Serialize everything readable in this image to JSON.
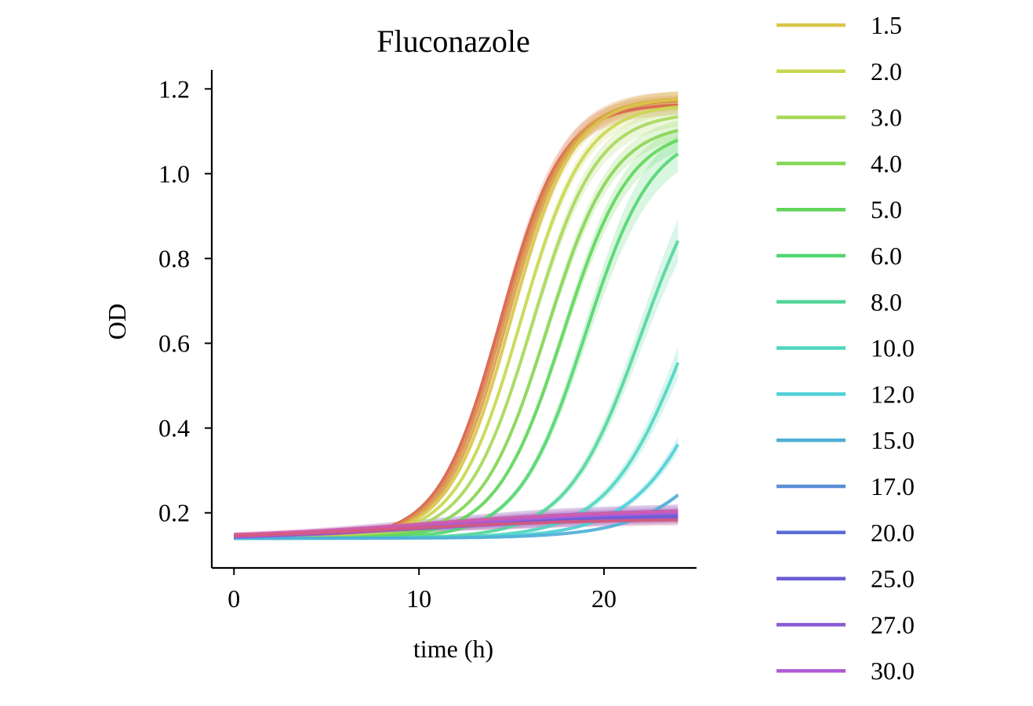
{
  "chart_data": {
    "type": "line",
    "title": "Fluconazole",
    "xlabel": "time (h)",
    "ylabel": "OD",
    "xlim": [
      -1.2,
      25
    ],
    "ylim": [
      0.07,
      1.245
    ],
    "xticks": [
      0,
      10,
      20
    ],
    "yticks": [
      0.2,
      0.4,
      0.6,
      0.8,
      1.0,
      1.2
    ],
    "xtick_labels": [
      "0",
      "10",
      "20"
    ],
    "ytick_labels": [
      "0.2",
      "0.4",
      "0.6",
      "0.8",
      "1.0",
      "1.2"
    ],
    "grid": false,
    "legend_position": "outside-right",
    "legend_entries": [
      {
        "label": "1.5",
        "color": "#d9c54a"
      },
      {
        "label": "2.0",
        "color": "#c8d84f"
      },
      {
        "label": "3.0",
        "color": "#a8d85a"
      },
      {
        "label": "4.0",
        "color": "#86d654"
      },
      {
        "label": "5.0",
        "color": "#5fd65a"
      },
      {
        "label": "6.0",
        "color": "#52d670"
      },
      {
        "label": "8.0",
        "color": "#52d69a"
      },
      {
        "label": "10.0",
        "color": "#4fd6bf"
      },
      {
        "label": "12.0",
        "color": "#4fcfd6"
      },
      {
        "label": "15.0",
        "color": "#4fafd6"
      },
      {
        "label": "17.0",
        "color": "#5a8fd6"
      },
      {
        "label": "20.0",
        "color": "#5a6cd6"
      },
      {
        "label": "25.0",
        "color": "#6a5ad6"
      },
      {
        "label": "27.0",
        "color": "#8a5ad6"
      },
      {
        "label": "30.0",
        "color": "#b05ad6"
      }
    ],
    "series": [
      {
        "color": "#d9604a",
        "baseline": 0.14,
        "plateau": 1.165,
        "midpoint": 14.4,
        "rate": 0.6,
        "band": 0.02
      },
      {
        "color": "#d9884a",
        "baseline": 0.14,
        "plateau": 1.175,
        "midpoint": 14.6,
        "rate": 0.6,
        "band": 0.02
      },
      {
        "color": "#d9a24a",
        "baseline": 0.14,
        "plateau": 1.18,
        "midpoint": 14.8,
        "rate": 0.6,
        "band": 0.015
      },
      {
        "color": "#d9c54a",
        "baseline": 0.14,
        "plateau": 1.18,
        "midpoint": 15.0,
        "rate": 0.6,
        "band": 0.015
      },
      {
        "color": "#c8d84f",
        "baseline": 0.14,
        "plateau": 1.165,
        "midpoint": 15.5,
        "rate": 0.58,
        "band": 0.015
      },
      {
        "color": "#a8d85a",
        "baseline": 0.14,
        "plateau": 1.145,
        "midpoint": 16.1,
        "rate": 0.57,
        "band": 0.02
      },
      {
        "color": "#86d654",
        "baseline": 0.14,
        "plateau": 1.12,
        "midpoint": 16.9,
        "rate": 0.56,
        "band": 0.02
      },
      {
        "color": "#5fd65a",
        "baseline": 0.14,
        "plateau": 1.11,
        "midpoint": 17.8,
        "rate": 0.55,
        "band": 0.025
      },
      {
        "color": "#52d670",
        "baseline": 0.14,
        "plateau": 1.105,
        "midpoint": 19.0,
        "rate": 0.55,
        "band": 0.04
      },
      {
        "color": "#52d69a",
        "baseline": 0.14,
        "plateau": 1.1,
        "midpoint": 22.0,
        "rate": 0.5,
        "band": 0.05
      },
      {
        "color": "#4fd6bf",
        "baseline": 0.14,
        "plateau": 1.1,
        "midpoint": 24.6,
        "rate": 0.46,
        "band": 0.06
      },
      {
        "color": "#4fcfd6",
        "baseline": 0.14,
        "plateau": 1.1,
        "midpoint": 26.8,
        "rate": 0.43,
        "band": 0.05
      },
      {
        "color": "#4fafd6",
        "baseline": 0.14,
        "plateau": 1.1,
        "midpoint": 29.6,
        "rate": 0.38,
        "band": 0.02
      },
      {
        "color": "#5a8fd6",
        "baseline": 0.135,
        "plateau": 0.21,
        "midpoint": 10.0,
        "rate": 0.18,
        "band": 0.012
      },
      {
        "color": "#5a6cd6",
        "baseline": 0.135,
        "plateau": 0.2,
        "midpoint": 10.0,
        "rate": 0.18,
        "band": 0.012
      },
      {
        "color": "#6a5ad6",
        "baseline": 0.135,
        "plateau": 0.195,
        "midpoint": 10.0,
        "rate": 0.18,
        "band": 0.012
      },
      {
        "color": "#8a5ad6",
        "baseline": 0.135,
        "plateau": 0.19,
        "midpoint": 10.0,
        "rate": 0.18,
        "band": 0.01
      },
      {
        "color": "#b05ad6",
        "baseline": 0.135,
        "plateau": 0.205,
        "midpoint": 10.5,
        "rate": 0.18,
        "band": 0.012
      },
      {
        "color": "#d65aa8",
        "baseline": 0.14,
        "plateau": 0.21,
        "midpoint": 10.5,
        "rate": 0.18,
        "band": 0.012
      },
      {
        "color": "#d65a7a",
        "baseline": 0.14,
        "plateau": 0.185,
        "midpoint": 9.0,
        "rate": 0.2,
        "band": 0.01
      }
    ],
    "x_range": [
      0,
      24
    ]
  }
}
